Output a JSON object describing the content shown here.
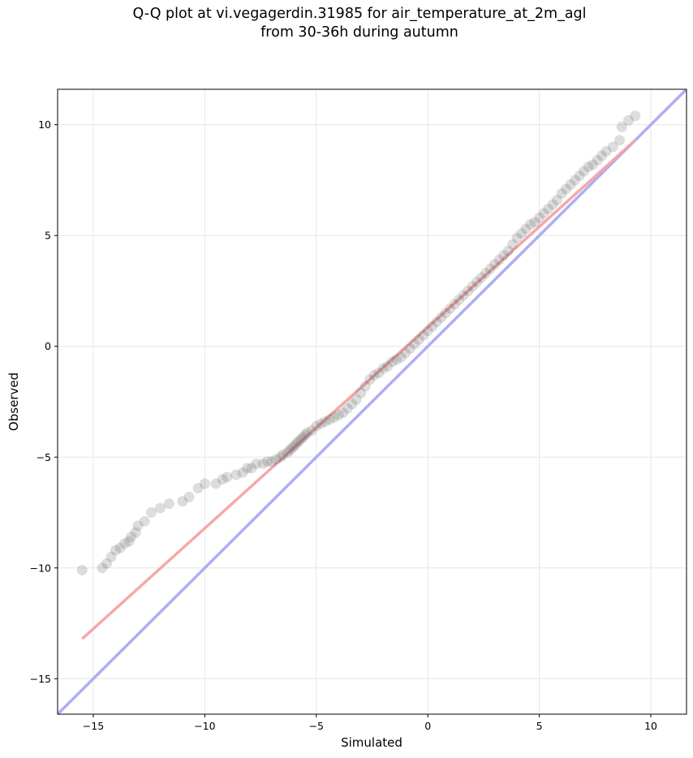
{
  "chart_data": {
    "type": "scatter",
    "title_lines": [
      "Q-Q plot at vi.vegagerdin.31985 for air_temperature_at_2m_agl",
      "from 30-36h during autumn"
    ],
    "xlabel": "Simulated",
    "ylabel": "Observed",
    "xlim": [
      -16.6,
      11.6
    ],
    "ylim": [
      -16.6,
      11.6
    ],
    "xticks": [
      -15,
      -10,
      -5,
      0,
      5,
      10
    ],
    "yticks": [
      -15,
      -10,
      -5,
      0,
      5,
      10
    ],
    "tick_labels": [
      "−15",
      "−10",
      "−5",
      "0",
      "5",
      "10"
    ],
    "grid": true,
    "colors": {
      "points": "#555555",
      "fit_line": "#f4a3a3",
      "identity_line": "#aaaaf2",
      "grid": "#e6e6e6"
    },
    "fit_line": {
      "x": [
        -15.5,
        9.3
      ],
      "y": [
        -13.2,
        9.3
      ]
    },
    "identity_line": {
      "x": [
        -16.6,
        11.6
      ],
      "y": [
        -16.6,
        11.6
      ]
    },
    "points": {
      "x": [
        -15.5,
        -14.6,
        -14.4,
        -14.2,
        -14.0,
        -13.8,
        -13.6,
        -13.4,
        -13.3,
        -13.1,
        -13.0,
        -12.7,
        -12.4,
        -12.0,
        -11.6,
        -11.0,
        -10.7,
        -10.3,
        -10.0,
        -9.5,
        -9.2,
        -9.0,
        -8.6,
        -8.3,
        -8.1,
        -7.9,
        -7.7,
        -7.4,
        -7.2,
        -7.0,
        -6.8,
        -6.6,
        -6.5,
        -6.3,
        -6.2,
        -6.1,
        -6.0,
        -5.9,
        -5.8,
        -5.7,
        -5.6,
        -5.5,
        -5.4,
        -5.2,
        -5.0,
        -4.8,
        -4.6,
        -4.4,
        -4.2,
        -4.0,
        -3.8,
        -3.6,
        -3.4,
        -3.2,
        -3.0,
        -2.8,
        -2.6,
        -2.4,
        -2.2,
        -2.0,
        -1.8,
        -1.6,
        -1.4,
        -1.2,
        -1.0,
        -0.8,
        -0.6,
        -0.4,
        -0.2,
        0.0,
        0.2,
        0.4,
        0.6,
        0.8,
        1.0,
        1.2,
        1.4,
        1.6,
        1.8,
        2.0,
        2.2,
        2.4,
        2.6,
        2.8,
        3.0,
        3.2,
        3.4,
        3.6,
        3.8,
        4.0,
        4.2,
        4.4,
        4.6,
        4.8,
        5.0,
        5.2,
        5.4,
        5.6,
        5.8,
        6.0,
        6.2,
        6.4,
        6.6,
        6.8,
        7.0,
        7.2,
        7.4,
        7.6,
        7.8,
        8.0,
        8.3,
        8.6,
        8.7,
        9.0,
        9.3
      ],
      "y": [
        -10.1,
        -10.0,
        -9.8,
        -9.5,
        -9.2,
        -9.1,
        -8.9,
        -8.8,
        -8.6,
        -8.4,
        -8.1,
        -7.9,
        -7.5,
        -7.3,
        -7.1,
        -7.0,
        -6.8,
        -6.4,
        -6.2,
        -6.2,
        -6.0,
        -5.9,
        -5.8,
        -5.7,
        -5.5,
        -5.5,
        -5.3,
        -5.3,
        -5.2,
        -5.2,
        -5.1,
        -5.0,
        -4.9,
        -4.8,
        -4.7,
        -4.6,
        -4.5,
        -4.4,
        -4.3,
        -4.2,
        -4.1,
        -4.0,
        -3.9,
        -3.8,
        -3.6,
        -3.5,
        -3.4,
        -3.3,
        -3.2,
        -3.1,
        -3.0,
        -2.8,
        -2.6,
        -2.4,
        -2.1,
        -1.8,
        -1.5,
        -1.3,
        -1.2,
        -1.0,
        -0.9,
        -0.7,
        -0.6,
        -0.5,
        -0.3,
        -0.1,
        0.1,
        0.3,
        0.5,
        0.7,
        0.9,
        1.1,
        1.3,
        1.5,
        1.7,
        1.9,
        2.1,
        2.3,
        2.5,
        2.7,
        2.9,
        3.1,
        3.3,
        3.5,
        3.7,
        3.9,
        4.1,
        4.3,
        4.6,
        4.9,
        5.1,
        5.3,
        5.5,
        5.6,
        5.8,
        6.0,
        6.2,
        6.4,
        6.6,
        6.9,
        7.1,
        7.3,
        7.5,
        7.7,
        7.9,
        8.1,
        8.2,
        8.4,
        8.6,
        8.8,
        9.0,
        9.3,
        9.9,
        10.2,
        10.4
      ]
    }
  }
}
